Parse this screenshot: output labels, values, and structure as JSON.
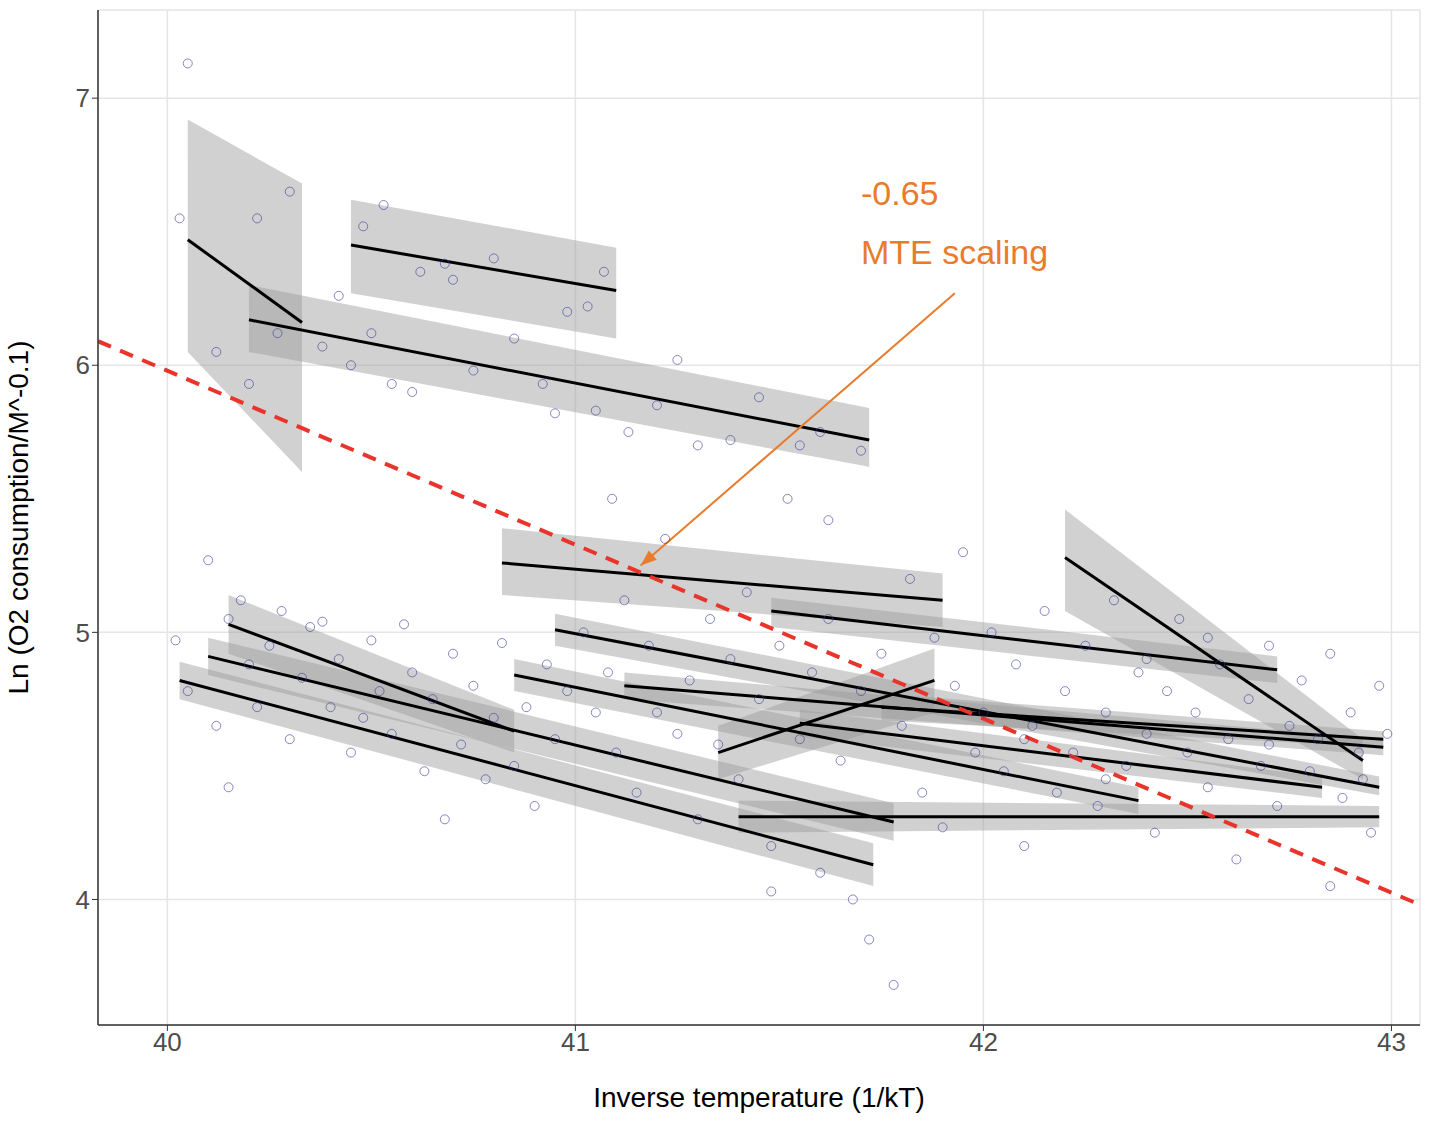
{
  "chart_data": {
    "type": "scatter",
    "x_label": "Inverse temperature  (1/kT)",
    "y_label": "Ln (O2 consumption/M^-0.1)",
    "xlim": [
      39.83,
      43.07
    ],
    "ylim": [
      3.53,
      7.33
    ],
    "xticks": [
      40,
      41,
      42,
      43
    ],
    "yticks": [
      4,
      5,
      6,
      7
    ],
    "grid": true,
    "color": "#3b3b9a",
    "marker": "circle_open",
    "x": [
      40.05,
      40.03,
      40.12,
      40.22,
      40.3,
      40.2,
      40.27,
      40.38,
      40.45,
      40.5,
      40.55,
      40.6,
      40.42,
      40.48,
      40.53,
      40.62,
      40.68,
      40.7,
      40.8,
      40.85,
      40.92,
      40.98,
      41.03,
      41.07,
      40.95,
      41.05,
      41.13,
      41.2,
      41.25,
      41.3,
      41.38,
      41.45,
      41.55,
      41.6,
      41.7,
      41.09,
      40.75,
      40.02,
      40.05,
      40.1,
      40.12,
      40.15,
      40.2,
      40.22,
      40.25,
      40.3,
      40.33,
      40.35,
      40.4,
      40.42,
      40.45,
      40.5,
      40.52,
      40.55,
      40.58,
      40.6,
      40.63,
      40.65,
      40.7,
      40.72,
      40.75,
      40.78,
      40.8,
      40.82,
      40.85,
      40.88,
      40.9,
      40.93,
      40.95,
      40.98,
      40.18,
      40.28,
      40.38,
      40.48,
      40.68,
      40.15,
      41.02,
      41.05,
      41.08,
      41.1,
      41.12,
      41.15,
      41.18,
      41.2,
      41.22,
      41.25,
      41.28,
      41.3,
      41.33,
      41.35,
      41.38,
      41.4,
      41.42,
      41.45,
      41.48,
      41.5,
      41.52,
      41.55,
      41.58,
      41.6,
      41.62,
      41.65,
      41.68,
      41.7,
      41.72,
      41.75,
      41.78,
      41.8,
      41.82,
      41.85,
      41.88,
      41.9,
      41.93,
      41.95,
      41.98,
      41.62,
      41.48,
      42.0,
      42.02,
      42.05,
      42.08,
      42.1,
      42.12,
      42.15,
      42.18,
      42.2,
      42.22,
      42.25,
      42.28,
      42.3,
      42.32,
      42.35,
      42.38,
      42.4,
      42.42,
      42.45,
      42.48,
      42.5,
      42.52,
      42.55,
      42.58,
      42.6,
      42.62,
      42.65,
      42.68,
      42.7,
      42.72,
      42.75,
      42.78,
      42.8,
      42.82,
      42.85,
      42.88,
      42.9,
      42.92,
      42.95,
      42.97,
      42.99,
      42.55,
      42.4,
      42.85,
      42.1,
      42.3,
      42.7,
      42.93
    ],
    "values": [
      7.13,
      6.55,
      6.05,
      6.55,
      6.65,
      5.93,
      6.12,
      6.07,
      6.0,
      6.12,
      5.93,
      5.9,
      6.26,
      6.52,
      6.6,
      6.35,
      6.38,
      6.32,
      6.4,
      6.1,
      5.93,
      6.2,
      6.22,
      6.35,
      5.82,
      5.83,
      5.75,
      5.85,
      6.02,
      5.7,
      5.72,
      5.88,
      5.7,
      5.75,
      5.68,
      5.5,
      5.98,
      4.97,
      4.78,
      5.27,
      4.65,
      5.05,
      4.88,
      4.72,
      4.95,
      4.6,
      4.83,
      5.02,
      4.72,
      4.9,
      4.55,
      4.97,
      4.78,
      4.62,
      5.03,
      4.85,
      4.48,
      4.75,
      4.92,
      4.58,
      4.8,
      4.45,
      4.68,
      4.96,
      4.5,
      4.72,
      4.35,
      4.88,
      4.6,
      4.78,
      5.12,
      5.08,
      5.04,
      4.68,
      4.3,
      4.42,
      5.0,
      4.7,
      4.85,
      4.55,
      5.12,
      4.4,
      4.95,
      4.7,
      5.35,
      4.62,
      4.82,
      4.3,
      5.05,
      4.58,
      4.9,
      4.45,
      5.15,
      4.75,
      4.2,
      4.95,
      5.5,
      4.6,
      4.85,
      4.1,
      5.05,
      4.52,
      4.0,
      4.78,
      3.85,
      4.92,
      3.68,
      4.65,
      5.2,
      4.4,
      4.98,
      4.27,
      4.8,
      5.3,
      4.55,
      5.42,
      4.03,
      4.7,
      5.0,
      4.48,
      4.88,
      4.2,
      4.65,
      5.08,
      4.4,
      4.78,
      4.55,
      4.95,
      4.35,
      4.7,
      5.12,
      4.5,
      4.85,
      4.62,
      4.25,
      4.78,
      5.05,
      4.55,
      4.7,
      4.42,
      4.88,
      4.6,
      4.15,
      4.75,
      4.5,
      4.95,
      4.35,
      4.65,
      4.82,
      4.48,
      4.6,
      4.92,
      4.38,
      4.7,
      4.55,
      4.25,
      4.8,
      4.62,
      4.98,
      4.9,
      4.05,
      4.6,
      4.45,
      4.58,
      4.45
    ],
    "fits": {
      "color": "#000000",
      "band_color": "#999999",
      "lines": [
        {
          "x": [
            40.05,
            40.33
          ],
          "values": [
            6.47,
            6.16
          ],
          "lower": [
            6.05,
            5.6
          ],
          "upper": [
            6.92,
            6.68
          ]
        },
        {
          "x": [
            40.2,
            41.72
          ],
          "values": [
            6.17,
            5.72
          ],
          "lower": [
            6.05,
            5.62
          ],
          "upper": [
            6.3,
            5.84
          ]
        },
        {
          "x": [
            40.45,
            41.1
          ],
          "values": [
            6.45,
            6.28
          ],
          "lower": [
            6.27,
            6.1
          ],
          "upper": [
            6.62,
            6.44
          ]
        },
        {
          "x": [
            40.82,
            41.9
          ],
          "values": [
            5.26,
            5.12
          ],
          "lower": [
            5.14,
            5.02
          ],
          "upper": [
            5.39,
            5.22
          ]
        },
        {
          "x": [
            41.48,
            42.72
          ],
          "values": [
            5.08,
            4.86
          ],
          "lower": [
            5.02,
            4.81
          ],
          "upper": [
            5.13,
            4.91
          ]
        },
        {
          "x": [
            42.2,
            42.93
          ],
          "values": [
            5.28,
            4.52
          ],
          "lower": [
            5.08,
            4.45
          ],
          "upper": [
            5.46,
            4.6
          ]
        },
        {
          "x": [
            40.95,
            42.97
          ],
          "values": [
            5.01,
            4.42
          ],
          "lower": [
            4.95,
            4.39
          ],
          "upper": [
            5.07,
            4.46
          ]
        },
        {
          "x": [
            40.85,
            42.38
          ],
          "values": [
            4.84,
            4.37
          ],
          "lower": [
            4.78,
            4.32
          ],
          "upper": [
            4.9,
            4.42
          ]
        },
        {
          "x": [
            41.12,
            42.98
          ],
          "values": [
            4.8,
            4.57
          ],
          "lower": [
            4.75,
            4.54
          ],
          "upper": [
            4.85,
            4.6
          ]
        },
        {
          "x": [
            41.35,
            41.88
          ],
          "values": [
            4.55,
            4.82
          ],
          "lower": [
            4.45,
            4.7
          ],
          "upper": [
            4.65,
            4.94
          ]
        },
        {
          "x": [
            41.4,
            42.97
          ],
          "values": [
            4.31,
            4.31
          ],
          "lower": [
            4.25,
            4.27
          ],
          "upper": [
            4.37,
            4.35
          ]
        },
        {
          "x": [
            40.1,
            41.78
          ],
          "values": [
            4.91,
            4.29
          ],
          "lower": [
            4.84,
            4.22
          ],
          "upper": [
            4.98,
            4.36
          ]
        },
        {
          "x": [
            40.15,
            40.85
          ],
          "values": [
            5.03,
            4.63
          ],
          "lower": [
            4.92,
            4.55
          ],
          "upper": [
            5.14,
            4.71
          ]
        },
        {
          "x": [
            40.03,
            41.73
          ],
          "values": [
            4.82,
            4.13
          ],
          "lower": [
            4.75,
            4.05
          ],
          "upper": [
            4.89,
            4.21
          ]
        },
        {
          "x": [
            41.55,
            42.83
          ],
          "values": [
            4.66,
            4.42
          ],
          "lower": [
            4.61,
            4.38
          ],
          "upper": [
            4.71,
            4.46
          ]
        },
        {
          "x": [
            41.75,
            42.98
          ],
          "values": [
            4.72,
            4.6
          ],
          "lower": [
            4.67,
            4.57
          ],
          "upper": [
            4.77,
            4.63
          ]
        }
      ]
    },
    "reference_line": {
      "x": [
        39.83,
        43.07
      ],
      "values": [
        6.09,
        3.98
      ],
      "color": "#e8342a",
      "line_style": "dashed"
    },
    "annotation": {
      "text": [
        "-0.65",
        "MTE scaling"
      ],
      "x": 41.7,
      "y": [
        6.6,
        6.38
      ],
      "color": "#e87b2c",
      "arrow_from": [
        41.93,
        6.27
      ],
      "arrow_to": [
        41.16,
        5.25
      ]
    }
  }
}
